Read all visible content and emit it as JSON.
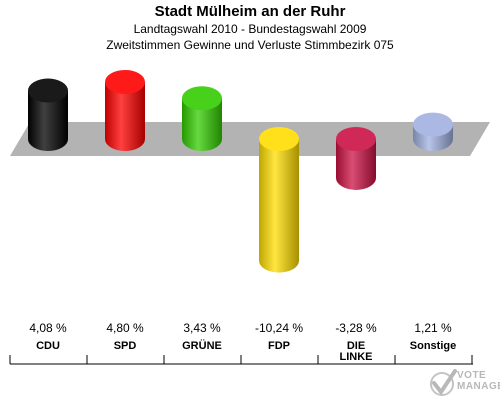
{
  "header": {
    "title": "Stadt Mülheim an der Ruhr",
    "subtitle1": "Landtagswahl 2010 - Bundestagswahl 2009",
    "subtitle2": "Zweitstimmen Gewinne und Verluste Stimmbezirk 075"
  },
  "chart_data": {
    "type": "bar",
    "categories": [
      "CDU",
      "SPD",
      "GRÜNE",
      "FDP",
      "DIE LINKE",
      "Sonstige"
    ],
    "category_lines": [
      [
        "CDU"
      ],
      [
        "SPD"
      ],
      [
        "GRÜNE"
      ],
      [
        "FDP"
      ],
      [
        "DIE",
        "LINKE"
      ],
      [
        "Sonstige"
      ]
    ],
    "values": [
      4.08,
      4.8,
      3.43,
      -10.24,
      -3.28,
      1.21
    ],
    "value_labels": [
      "4,08 %",
      "4,80 %",
      "3,43 %",
      "-10,24 %",
      "-3,28 %",
      "1,21 %"
    ],
    "colors": [
      "#000000",
      "#ff0000",
      "#33cc00",
      "#ffdd00",
      "#cc1144",
      "#a0b0e0"
    ],
    "ylim": [
      -10.24,
      4.8
    ],
    "grid": false,
    "legend": "none"
  },
  "logo": {
    "line1": "VOTE",
    "line2": "MANAGER"
  }
}
